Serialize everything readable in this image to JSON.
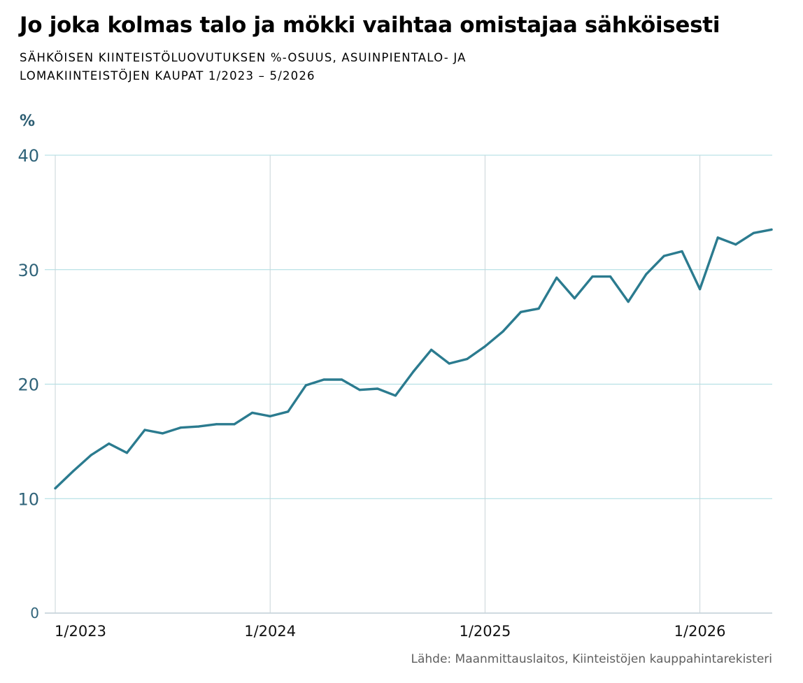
{
  "chart_data": {
    "type": "line",
    "title": "Jo joka kolmas talo ja mökki vaihtaa omistajaa sähköisesti",
    "subtitle_lines": [
      "SÄHKÖISEN KIINTEISTÖLUOVUTUKSEN %-OSUUS, ASUINPIENTALO- JA",
      "LOMAKIINTEISTÖJEN KAUPAT 1/2023 – 5/2026"
    ],
    "ylabel": "%",
    "xlabel": "",
    "ylim": [
      0,
      40
    ],
    "yticks": [
      0,
      10,
      20,
      30,
      40
    ],
    "x_tick_labels": [
      "1/2023",
      "1/2024",
      "1/2025",
      "1/2026"
    ],
    "grid": true,
    "color": "#2b7b8f",
    "series": [
      {
        "x": [
          "1/2023",
          "2/2023",
          "3/2023",
          "4/2023",
          "5/2023",
          "6/2023",
          "7/2023",
          "8/2023",
          "9/2023",
          "10/2023",
          "11/2023",
          "12/2023",
          "1/2024",
          "2/2024",
          "3/2024",
          "4/2024",
          "5/2024",
          "6/2024",
          "7/2024",
          "8/2024",
          "9/2024",
          "10/2024",
          "11/2024",
          "12/2024",
          "1/2025",
          "2/2025",
          "3/2025",
          "4/2025",
          "5/2025",
          "6/2025",
          "7/2025",
          "8/2025",
          "9/2025",
          "10/2025",
          "11/2025",
          "12/2025",
          "1/2026",
          "2/2026",
          "3/2026",
          "4/2026",
          "5/2026"
        ],
        "values": [
          10.9,
          12.4,
          13.8,
          14.8,
          14.0,
          16.0,
          15.7,
          16.2,
          16.3,
          16.5,
          16.5,
          17.5,
          17.2,
          17.6,
          19.9,
          20.4,
          20.4,
          19.5,
          19.6,
          19.0,
          21.1,
          23.0,
          21.8,
          22.2,
          23.3,
          24.6,
          26.3,
          26.6,
          29.3,
          27.5,
          29.4,
          29.4,
          27.2,
          29.6,
          31.2,
          31.6,
          28.3,
          32.8,
          32.2,
          33.2,
          33.5
        ]
      }
    ]
  },
  "source": "Lähde: Maanmittauslaitos, Kiinteistöjen kauppahintarekisteri"
}
